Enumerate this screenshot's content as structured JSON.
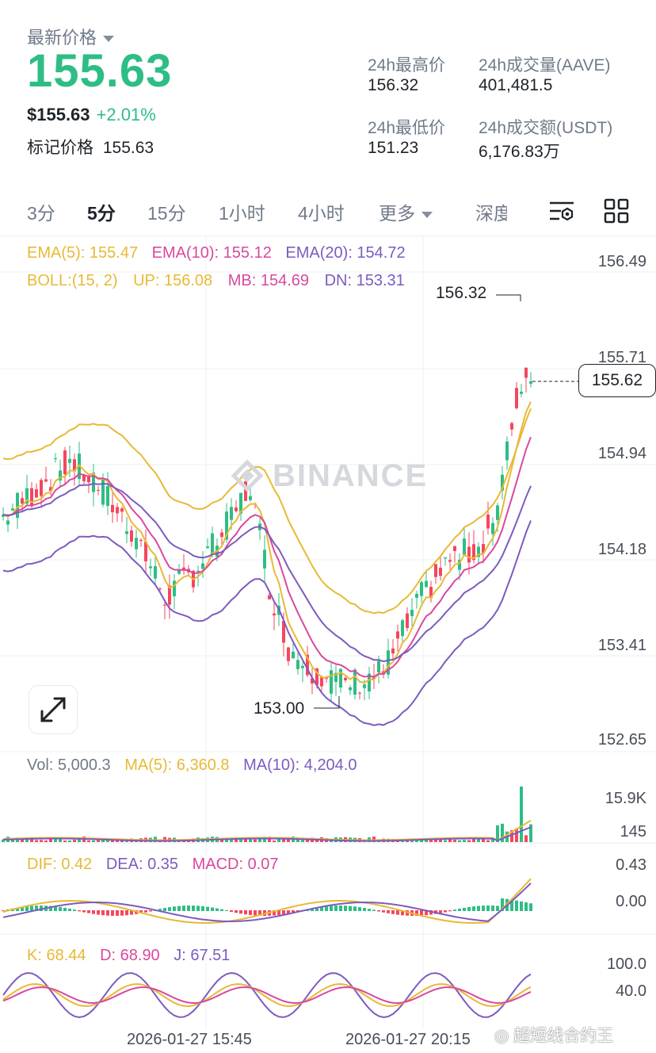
{
  "header": {
    "last_price_label": "最新价格",
    "last_price": "155.63",
    "usd_price": "$155.63",
    "change_pct": "+2.01%",
    "mark_price_label": "标记价格",
    "mark_price": "155.63",
    "stats": {
      "high_label": "24h最高价",
      "high": "156.32",
      "volume_label": "24h成交量(AAVE)",
      "volume": "401,481.5",
      "low_label": "24h最低价",
      "low": "151.23",
      "turnover_label": "24h成交额(USDT)",
      "turnover": "6,176.83万"
    }
  },
  "tabs": [
    {
      "label": "3分"
    },
    {
      "label": "5分"
    },
    {
      "label": "15分"
    },
    {
      "label": "1小时"
    },
    {
      "label": "4小时"
    },
    {
      "label": "更多"
    },
    {
      "label": "深度"
    }
  ],
  "main_chart": {
    "ema_legend": {
      "ema5": "EMA(5): 155.47",
      "ema10": "EMA(10): 155.12",
      "ema20": "EMA(20): 154.72"
    },
    "boll_legend": {
      "boll": "BOLL:(15, 2)",
      "up": "UP: 156.08",
      "mb": "MB: 154.69",
      "dn": "DN: 153.31"
    },
    "y_ticks": [
      "156.49",
      "155.71",
      "154.94",
      "154.18",
      "153.41",
      "152.65"
    ],
    "high_marker": "156.32",
    "low_marker": "153.00",
    "current_price_flag": "155.62",
    "watermark": "BINANCE"
  },
  "volume_panel": {
    "vol": "Vol: 5,000.3",
    "ma5": "MA(5): 6,360.8",
    "ma10": "MA(10): 4,204.0",
    "y_ticks": [
      "15.9K",
      "145"
    ]
  },
  "macd_panel": {
    "dif": "DIF: 0.42",
    "dea": "DEA: 0.35",
    "macd": "MACD: 0.07",
    "y_ticks": [
      "0.43",
      "0.00"
    ]
  },
  "kdj_panel": {
    "k": "K: 68.44",
    "d": "D: 68.90",
    "j": "J: 67.51",
    "y_ticks": [
      "100.0",
      "40.0"
    ]
  },
  "x_dates": [
    "2026-01-27 15:45",
    "2026-01-27 20:15"
  ],
  "attribution": "超短线合约王",
  "colors": {
    "up": "#2ebd85",
    "down": "#f6465d",
    "ema5": "#e8b935",
    "ema10": "#d9489e",
    "ema20": "#7d5bbe"
  }
}
